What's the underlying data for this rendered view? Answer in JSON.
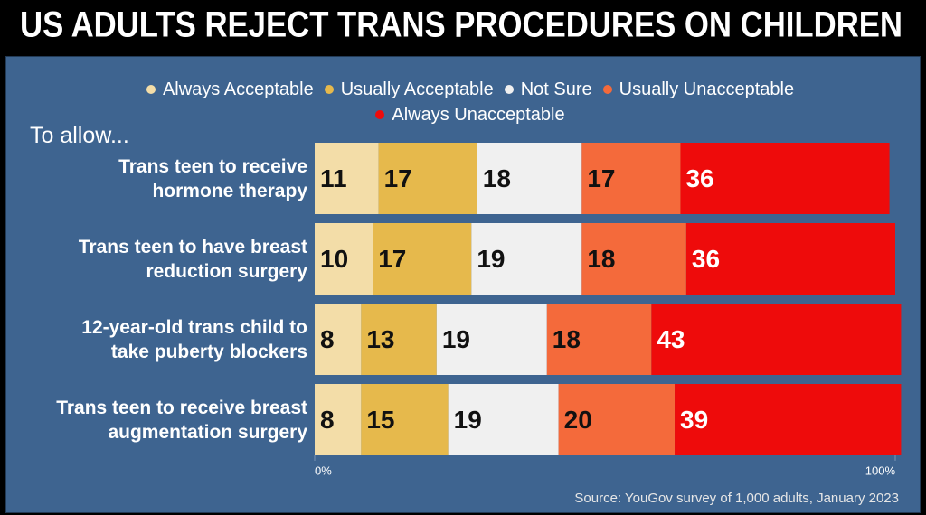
{
  "chart_data": {
    "type": "bar",
    "orientation": "horizontal",
    "stacked": true,
    "title": "US ADULTS REJECT TRANS PROCEDURES ON CHILDREN",
    "y_axis_label": "To allow...",
    "source": "Source: YouGov survey of 1,000 adults, January 2023",
    "categories": [
      "Trans teen to receive\nhormone therapy",
      "Trans teen to have breast\nreduction surgery",
      "12-year-old trans child to\ntake puberty blockers",
      "Trans teen to receive breast\naugmentation surgery"
    ],
    "series": [
      {
        "name": "Always Acceptable",
        "color": "#f3dda8",
        "label_color": "#111111",
        "values": [
          11,
          10,
          8,
          8
        ]
      },
      {
        "name": "Usually Acceptable",
        "color": "#e6b94c",
        "label_color": "#111111",
        "values": [
          17,
          17,
          13,
          15
        ]
      },
      {
        "name": "Not Sure",
        "color": "#f0f0f0",
        "label_color": "#111111",
        "values": [
          18,
          19,
          19,
          19
        ]
      },
      {
        "name": "Usually Unacceptable",
        "color": "#f46a3b",
        "label_color": "#111111",
        "values": [
          17,
          18,
          18,
          20
        ]
      },
      {
        "name": "Always Unacceptable",
        "color": "#ee0b0b",
        "label_color": "#ffffff",
        "values": [
          36,
          36,
          43,
          39
        ]
      }
    ],
    "xlim": [
      0,
      100
    ],
    "xticks": [
      {
        "value": 0,
        "label": "0%"
      },
      {
        "value": 100,
        "label": "100%"
      }
    ]
  }
}
